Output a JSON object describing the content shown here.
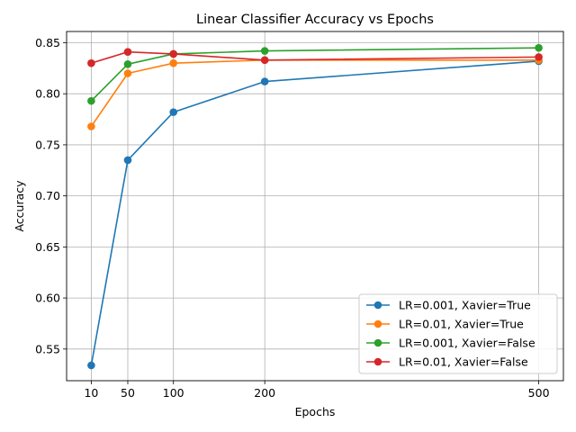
{
  "chart_data": {
    "type": "line",
    "title": "Linear Classifier Accuracy vs Epochs",
    "xlabel": "Epochs",
    "ylabel": "Accuracy",
    "x": [
      10,
      50,
      100,
      200,
      500
    ],
    "xticks": [
      10,
      50,
      100,
      200,
      500
    ],
    "xlim": [
      -17,
      527
    ],
    "yticks": [
      0.55,
      0.6,
      0.65,
      0.7,
      0.75,
      0.8,
      0.85
    ],
    "ylim": [
      0.519,
      0.861
    ],
    "grid": true,
    "legend_position": "lower right",
    "series": [
      {
        "name": "LR=0.001, Xavier=True",
        "color": "#1f77b4",
        "values": [
          0.534,
          0.735,
          0.782,
          0.812,
          0.832
        ]
      },
      {
        "name": "LR=0.01, Xavier=True",
        "color": "#ff7f0e",
        "values": [
          0.768,
          0.82,
          0.83,
          0.833,
          0.833
        ]
      },
      {
        "name": "LR=0.001, Xavier=False",
        "color": "#2ca02c",
        "values": [
          0.793,
          0.829,
          0.839,
          0.842,
          0.845
        ]
      },
      {
        "name": "LR=0.01, Xavier=False",
        "color": "#d62728",
        "values": [
          0.83,
          0.841,
          0.839,
          0.833,
          0.836
        ]
      }
    ]
  }
}
